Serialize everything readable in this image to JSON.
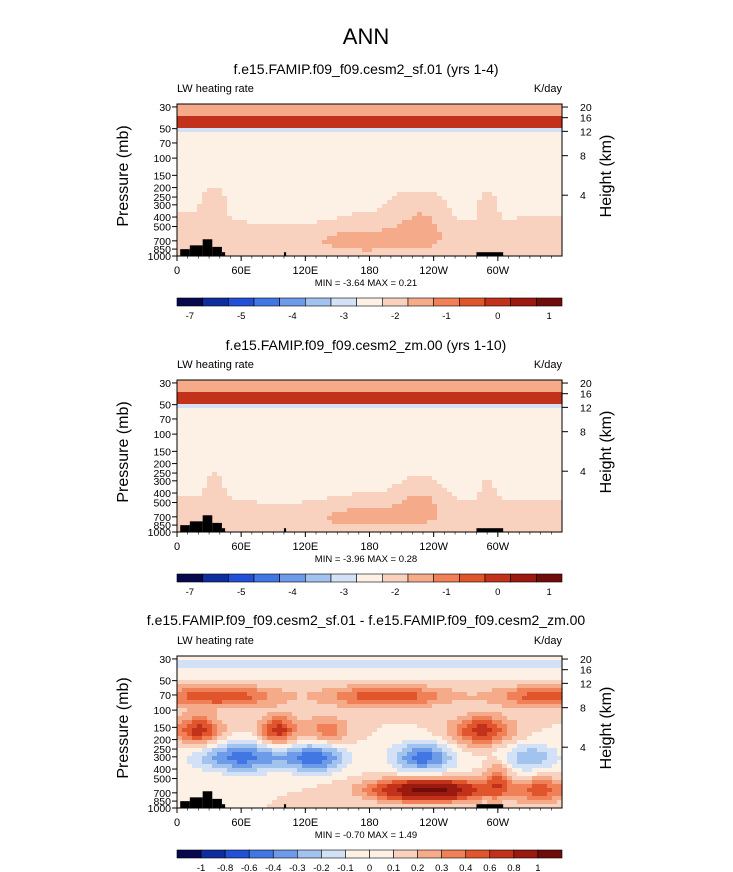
{
  "page": {
    "title": "ANN"
  },
  "colors": {
    "ramp_12": [
      "#08084f",
      "#0f2ca0",
      "#2150d6",
      "#4176e3",
      "#6e9be8",
      "#a3c3ef",
      "#d2e1f5",
      "#fdf1e6",
      "#f9d2bf",
      "#f5ab8a",
      "#f08058",
      "#e0552b",
      "#c2311a",
      "#9a1a10",
      "#6f0d0b"
    ],
    "land": "#000000"
  },
  "chart_data": [
    {
      "type": "heatmap",
      "name": "panel-1",
      "title": "f.e15.FAMIP.f09_f09.cesm2_sf.01 (yrs 1-4)",
      "variable_label": "LW heating rate",
      "units_label": "K/day",
      "ylabel": "Pressure (mb)",
      "ylabel_right": "Height (km)",
      "y_ticks": [
        "30",
        "50",
        "70",
        "100",
        "150",
        "200",
        "250",
        "300",
        "400",
        "500",
        "700",
        "850",
        "1000"
      ],
      "y_ticks_right": [
        "20",
        "16",
        "12",
        "8",
        "4"
      ],
      "x_ticks": [
        "0",
        "60E",
        "120E",
        "180",
        "120W",
        "60W"
      ],
      "stats": "MIN =  -3.64  MAX =  0.21",
      "colorbar_labels": [
        "-7",
        "-5",
        "-4",
        "-3",
        "-2",
        "-1",
        "0",
        "1"
      ],
      "colorbar_levels": 15,
      "variant": "mean"
    },
    {
      "type": "heatmap",
      "name": "panel-2",
      "title": "f.e15.FAMIP.f09_f09.cesm2_zm.00 (yrs 1-10)",
      "variable_label": "LW heating rate",
      "units_label": "K/day",
      "ylabel": "Pressure (mb)",
      "ylabel_right": "Height (km)",
      "y_ticks": [
        "30",
        "50",
        "70",
        "100",
        "150",
        "200",
        "250",
        "300",
        "400",
        "500",
        "700",
        "850",
        "1000"
      ],
      "y_ticks_right": [
        "20",
        "16",
        "12",
        "8",
        "4"
      ],
      "x_ticks": [
        "0",
        "60E",
        "120E",
        "180",
        "120W",
        "60W"
      ],
      "stats": "MIN =  -3.96  MAX =  0.28",
      "colorbar_labels": [
        "-7",
        "-5",
        "-4",
        "-3",
        "-2",
        "-1",
        "0",
        "1"
      ],
      "colorbar_levels": 15,
      "variant": "mean"
    },
    {
      "type": "heatmap",
      "name": "panel-3",
      "title": "f.e15.FAMIP.f09_f09.cesm2_sf.01 - f.e15.FAMIP.f09_f09.cesm2_zm.00",
      "variable_label": "LW heating rate",
      "units_label": "K/day",
      "ylabel": "Pressure (mb)",
      "ylabel_right": "Height (km)",
      "y_ticks": [
        "30",
        "50",
        "70",
        "100",
        "150",
        "200",
        "250",
        "300",
        "400",
        "500",
        "700",
        "850",
        "1000"
      ],
      "y_ticks_right": [
        "20",
        "16",
        "12",
        "8",
        "4"
      ],
      "x_ticks": [
        "0",
        "60E",
        "120E",
        "180",
        "120W",
        "60W"
      ],
      "stats": "MIN =  -0.70  MAX =  1.49",
      "colorbar_labels": [
        "-1",
        "-0.8",
        "-0.6",
        "-0.4",
        "-0.3",
        "-0.2",
        "-0.1",
        "0",
        "0.1",
        "0.2",
        "0.3",
        "0.4",
        "0.6",
        "0.8",
        "1"
      ],
      "colorbar_levels": 16,
      "variant": "diff"
    }
  ]
}
